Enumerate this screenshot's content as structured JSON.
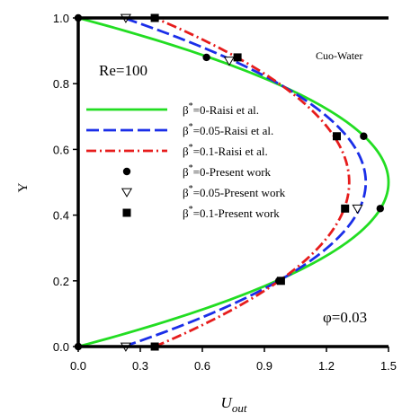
{
  "chart_data": {
    "type": "line",
    "xlabel": "U",
    "xlabel_sub": "out",
    "ylabel": "Y",
    "xlim": [
      0,
      1.5
    ],
    "ylim": [
      0,
      1.0
    ],
    "xticks": [
      "0.0",
      "0.3",
      "0.6",
      "0.9",
      "1.2",
      "1.5"
    ],
    "yticks": [
      "0.0",
      "0.2",
      "0.4",
      "0.6",
      "0.8",
      "1.0"
    ],
    "annotations": {
      "reynolds": "Re=100",
      "fluid": "Cuo-Water",
      "phi": "φ=0.03"
    },
    "series": [
      {
        "name": "β*=0-Raisi et al.",
        "legend": [
          "β",
          "*",
          "=0-Raisi et al."
        ],
        "style": "line",
        "dash": "solid",
        "color": "#22dd22",
        "slip": 0.0,
        "peak": 1.5
      },
      {
        "name": "β*=0.05-Raisi et al.",
        "legend": [
          "β",
          "*",
          "=0.05-Raisi et al."
        ],
        "style": "line",
        "dash": "dashed",
        "color": "#1a2ee8",
        "slip": 0.22,
        "peak": 1.39
      },
      {
        "name": "β*=0.1-Raisi et al.",
        "legend": [
          "β",
          "*",
          "=0.1-Raisi et al."
        ],
        "style": "line",
        "dash": "dashdot",
        "color": "#e61c1c",
        "slip": 0.37,
        "peak": 1.31
      },
      {
        "name": "β*=0-Present work",
        "legend": [
          "β",
          "*",
          "=0-Present work"
        ],
        "style": "marker",
        "marker": "circle",
        "points": [
          [
            0.0,
            1.0
          ],
          [
            0.62,
            0.88
          ],
          [
            1.38,
            0.64
          ],
          [
            1.46,
            0.42
          ],
          [
            0.97,
            0.2
          ],
          [
            0.0,
            0.0
          ]
        ]
      },
      {
        "name": "β*=0.05-Present work",
        "legend": [
          "β",
          "*",
          "=0.05-Present work"
        ],
        "style": "marker",
        "marker": "triangle-down",
        "points": [
          [
            0.23,
            1.0
          ],
          [
            0.73,
            0.87
          ],
          [
            1.35,
            0.42
          ],
          [
            0.23,
            0.0
          ]
        ]
      },
      {
        "name": "β*=0.1-Present work",
        "legend": [
          "β",
          "*",
          "=0.1-Present work"
        ],
        "style": "marker",
        "marker": "square",
        "points": [
          [
            0.37,
            1.0
          ],
          [
            0.77,
            0.88
          ],
          [
            1.25,
            0.64
          ],
          [
            1.29,
            0.42
          ],
          [
            0.98,
            0.2
          ],
          [
            0.37,
            0.0
          ]
        ]
      }
    ]
  }
}
